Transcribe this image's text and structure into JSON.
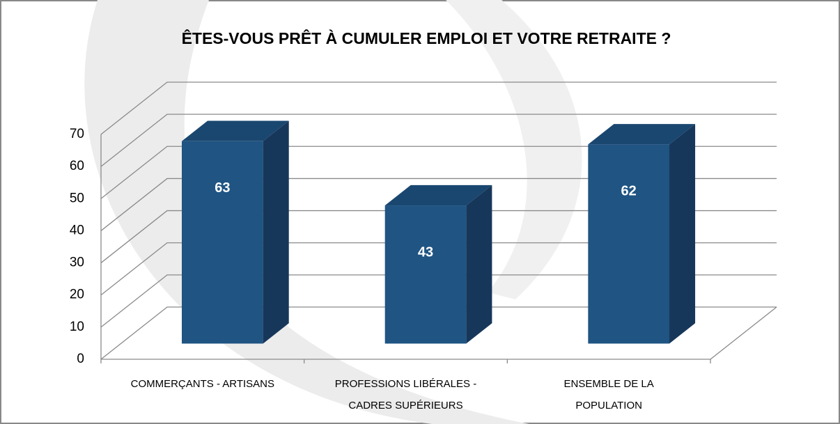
{
  "chart_data": {
    "type": "bar3d",
    "title": "ÊTES-VOUS PRÊT À CUMULER EMPLOI ET VOTRE RETRAITE ?",
    "categories": [
      [
        "COMMERÇANTS - ARTISANS"
      ],
      [
        "PROFESSIONS LIBÉRALES -",
        "CADRES SUPÉRIEURS"
      ],
      [
        "ENSEMBLE DE LA",
        "POPULATION"
      ]
    ],
    "values": [
      63,
      43,
      62
    ],
    "color": "#1f5483",
    "ylim": [
      0,
      70
    ],
    "yticks": [
      0,
      10,
      20,
      30,
      40,
      50,
      60,
      70
    ],
    "grid": true
  }
}
